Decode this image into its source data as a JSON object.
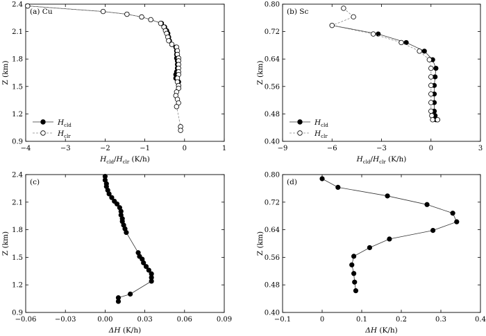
{
  "chart_data": [
    {
      "type": "line",
      "panel": "a",
      "annotation": "(a) Cu",
      "ylabel": "Z (km)",
      "xlabel": {
        "h1": "H",
        "h1_sub": "cld",
        "sep": "/",
        "h2": "H",
        "h2_sub": "clr",
        "unit": " (K/h)"
      },
      "xlim": [
        -4,
        1
      ],
      "ylim": [
        0.9,
        2.4
      ],
      "xticks": [
        "−4",
        "−3",
        "−2",
        "−1",
        "0",
        "1"
      ],
      "xtick_values": [
        -4,
        -3,
        -2,
        -1,
        0,
        1
      ],
      "yticks": [
        "0.9",
        "1.2",
        "1.5",
        "1.8",
        "2.1",
        "2.4"
      ],
      "ytick_values": [
        0.9,
        1.2,
        1.5,
        1.8,
        2.1,
        2.4
      ],
      "legend_position": "bottom-left",
      "series": [
        {
          "name": "H",
          "sub": "cld",
          "marker": "filled",
          "line": "solid",
          "x": [
            -3.95,
            -2.05,
            -1.45,
            -1.08,
            -0.85,
            -0.58,
            -0.5,
            -0.45,
            -0.42,
            -0.4,
            -0.38,
            -0.32,
            -0.22,
            -0.2,
            -0.2,
            -0.2,
            -0.18,
            -0.18,
            -0.18,
            -0.2,
            -0.22,
            -0.22,
            -0.15,
            -0.15,
            -0.15
          ],
          "y": [
            2.38,
            2.32,
            2.29,
            2.26,
            2.23,
            2.19,
            2.15,
            2.11,
            2.08,
            2.04,
            2.0,
            1.96,
            1.93,
            1.89,
            1.85,
            1.81,
            1.78,
            1.74,
            1.7,
            1.66,
            1.63,
            1.59,
            1.55,
            1.51,
            1.48
          ]
        },
        {
          "name": "H",
          "sub": "clr",
          "marker": "open",
          "line": "dashed",
          "x": [
            -3.95,
            -2.05,
            -1.45,
            -1.08,
            -0.85,
            -0.6,
            -0.52,
            -0.48,
            -0.45,
            -0.42,
            -0.4,
            -0.32,
            -0.2,
            -0.18,
            -0.18,
            -0.15,
            -0.15,
            -0.15,
            -0.15,
            -0.15,
            -0.15,
            -0.18,
            -0.18,
            -0.15,
            -0.15,
            -0.2,
            -0.22,
            -0.18,
            -0.15,
            -0.2,
            -0.1,
            -0.1
          ],
          "y": [
            2.38,
            2.32,
            2.29,
            2.26,
            2.23,
            2.19,
            2.15,
            2.11,
            2.08,
            2.04,
            2.0,
            1.96,
            1.93,
            1.89,
            1.85,
            1.81,
            1.78,
            1.74,
            1.7,
            1.66,
            1.63,
            1.59,
            1.55,
            1.51,
            1.48,
            1.44,
            1.4,
            1.36,
            1.32,
            1.28,
            1.06,
            1.02
          ]
        }
      ]
    },
    {
      "type": "line",
      "panel": "b",
      "annotation": "(b) Sc",
      "ylabel": "Z (km)",
      "xlabel": {
        "h1": "H",
        "h1_sub": "cld",
        "sep": "/",
        "h2": "H",
        "h2_sub": "clr",
        "unit": " (K/h)"
      },
      "xlim": [
        -9,
        3
      ],
      "ylim": [
        0.4,
        0.8
      ],
      "xticks": [
        "−9",
        "−6",
        "−3",
        "0",
        "3"
      ],
      "xtick_values": [
        -9,
        -6,
        -3,
        0,
        3
      ],
      "yticks": [
        "0.40",
        "0.48",
        "0.56",
        "0.64",
        "0.72",
        "0.80"
      ],
      "ytick_values": [
        0.4,
        0.48,
        0.56,
        0.64,
        0.72,
        0.8
      ],
      "legend_position": "bottom-left",
      "series": [
        {
          "name": "H",
          "sub": "cld",
          "marker": "filled",
          "line": "solid",
          "x": [
            -6.0,
            -3.2,
            -1.5,
            -0.4,
            0.1,
            0.3,
            0.25,
            0.2,
            0.2,
            0.2,
            0.2,
            0.25,
            0.3,
            0.4
          ],
          "y": [
            0.738,
            0.713,
            0.688,
            0.663,
            0.638,
            0.613,
            0.588,
            0.563,
            0.538,
            0.513,
            0.488,
            0.475,
            0.463,
            0.463
          ]
        },
        {
          "name": "H",
          "sub": "clr",
          "marker": "open",
          "line": "dashed",
          "x": [
            -5.3,
            -4.7,
            -6.0,
            -3.5,
            -1.8,
            -0.7,
            -0.1,
            0.0,
            0.0,
            0.0,
            0.0,
            0.0,
            0.0,
            0.05,
            0.1,
            0.4
          ],
          "y": [
            0.788,
            0.763,
            0.738,
            0.713,
            0.688,
            0.663,
            0.638,
            0.613,
            0.588,
            0.563,
            0.538,
            0.513,
            0.488,
            0.475,
            0.463,
            0.463
          ]
        }
      ]
    },
    {
      "type": "line",
      "panel": "c",
      "annotation": "(c)",
      "ylabel": "Z (km)",
      "xlabel": {
        "delta": "ΔH",
        "unit": " (K/h)"
      },
      "xlim": [
        -0.06,
        0.09
      ],
      "ylim": [
        0.9,
        2.4
      ],
      "xticks": [
        "−0.06",
        "−0.03",
        "0.00",
        "0.03",
        "0.06",
        "0.09"
      ],
      "xtick_values": [
        -0.06,
        -0.03,
        0.0,
        0.03,
        0.06,
        0.09
      ],
      "yticks": [
        "0.9",
        "1.2",
        "1.5",
        "1.8",
        "2.1",
        "2.4"
      ],
      "ytick_values": [
        0.9,
        1.2,
        1.5,
        1.8,
        2.1,
        2.4
      ],
      "series": [
        {
          "name": "ΔH",
          "marker": "filled",
          "line": "solid",
          "x": [
            0.0,
            0.0,
            0.001,
            0.001,
            0.002,
            0.003,
            0.005,
            0.007,
            0.009,
            0.011,
            0.012,
            0.012,
            0.013,
            0.013,
            0.014,
            0.015,
            0.016,
            0.025,
            0.026,
            0.028,
            0.029,
            0.031,
            0.033,
            0.035,
            0.035,
            0.035,
            0.019,
            0.01,
            0.01
          ],
          "y": [
            2.38,
            2.34,
            2.3,
            2.27,
            2.23,
            2.19,
            2.15,
            2.11,
            2.08,
            2.04,
            2.0,
            1.96,
            1.92,
            1.89,
            1.85,
            1.81,
            1.77,
            1.55,
            1.51,
            1.48,
            1.44,
            1.4,
            1.36,
            1.32,
            1.28,
            1.24,
            1.1,
            1.06,
            1.02
          ]
        }
      ]
    },
    {
      "type": "line",
      "panel": "d",
      "annotation": "(d)",
      "ylabel": "Z (km)",
      "xlabel": {
        "delta": "ΔH",
        "unit": " (K/h)"
      },
      "xlim": [
        -0.1,
        0.4
      ],
      "ylim": [
        0.4,
        0.8
      ],
      "xticks": [
        "−0.1",
        "0",
        "0.1",
        "0.2",
        "0.3",
        "0.4"
      ],
      "xtick_values": [
        -0.1,
        0.0,
        0.1,
        0.2,
        0.3,
        0.4
      ],
      "yticks": [
        "0.40",
        "0.48",
        "0.56",
        "0.64",
        "0.72",
        "0.80"
      ],
      "ytick_values": [
        0.4,
        0.48,
        0.56,
        0.64,
        0.72,
        0.8
      ],
      "series": [
        {
          "name": "ΔH",
          "marker": "filled",
          "line": "solid",
          "x": [
            0.0,
            0.04,
            0.165,
            0.265,
            0.33,
            0.34,
            0.28,
            0.17,
            0.12,
            0.08,
            0.075,
            0.08,
            0.082,
            0.085
          ],
          "y": [
            0.788,
            0.763,
            0.738,
            0.713,
            0.688,
            0.663,
            0.638,
            0.613,
            0.588,
            0.563,
            0.538,
            0.513,
            0.488,
            0.463
          ]
        }
      ]
    }
  ]
}
